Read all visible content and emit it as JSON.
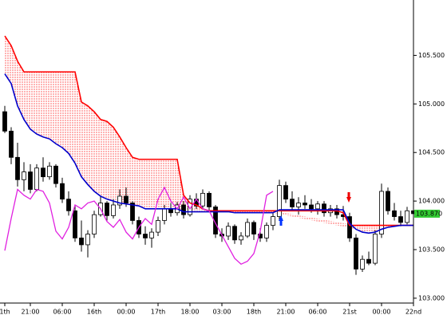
{
  "chart_data": {
    "type": "candlestick",
    "categories": [
      "1th",
      null,
      null,
      null,
      "21:00",
      null,
      null,
      null,
      null,
      "06:00",
      null,
      null,
      null,
      null,
      "16th",
      null,
      null,
      null,
      null,
      "00:00",
      null,
      null,
      null,
      null,
      "17th",
      null,
      null,
      null,
      null,
      "18:00",
      null,
      null,
      null,
      null,
      "03:00",
      null,
      null,
      null,
      null,
      "18th",
      null,
      null,
      null,
      null,
      "21:00",
      null,
      null,
      null,
      null,
      "06:00",
      null,
      null,
      null,
      null,
      "21st",
      null,
      null,
      null,
      null,
      "00:00",
      null,
      null,
      null,
      null,
      "22nd"
    ],
    "open": [
      104.92,
      104.72,
      104.45,
      104.22,
      104.3,
      104.12,
      104.34,
      104.25,
      104.36,
      104.18,
      104.02,
      103.9,
      103.62,
      103.55,
      103.66,
      103.86,
      103.98,
      103.85,
      103.96,
      104.05,
      103.98,
      103.8,
      103.66,
      103.62,
      103.68,
      103.8,
      103.92,
      103.88,
      103.96,
      103.86,
      104.02,
      103.95,
      104.08,
      103.94,
      103.66,
      103.64,
      103.74,
      103.6,
      103.64,
      103.78,
      103.66,
      103.62,
      103.75,
      103.84,
      104.16,
      104.02,
      103.94,
      103.98,
      103.96,
      103.92,
      103.97,
      103.88,
      103.92,
      103.86,
      103.84,
      103.62,
      103.3,
      103.4,
      103.36,
      103.66,
      104.1,
      103.9,
      103.84,
      103.78,
      103.9
    ],
    "high": [
      104.98,
      104.76,
      104.6,
      104.4,
      104.38,
      104.38,
      104.45,
      104.4,
      104.38,
      104.24,
      104.1,
      103.95,
      103.8,
      103.7,
      103.9,
      104.05,
      104.0,
      104.02,
      104.12,
      104.14,
      104.0,
      103.84,
      103.74,
      103.72,
      103.84,
      103.96,
      103.98,
      103.99,
      104.0,
      104.06,
      104.08,
      104.12,
      104.1,
      103.96,
      103.72,
      103.78,
      103.76,
      103.68,
      103.82,
      103.8,
      103.72,
      103.78,
      103.88,
      104.22,
      104.2,
      104.1,
      104.04,
      104.06,
      104.02,
      104.0,
      104.0,
      103.96,
      103.96,
      103.95,
      103.88,
      103.66,
      103.44,
      103.48,
      103.7,
      104.18,
      104.14,
      103.98,
      103.9,
      103.94,
      103.98
    ],
    "low": [
      104.7,
      104.38,
      104.15,
      104.1,
      104.08,
      104.1,
      104.2,
      104.22,
      104.14,
      103.98,
      103.85,
      103.58,
      103.48,
      103.42,
      103.62,
      103.84,
      103.8,
      103.82,
      103.92,
      103.94,
      103.76,
      103.62,
      103.55,
      103.52,
      103.64,
      103.76,
      103.84,
      103.85,
      103.82,
      103.84,
      103.92,
      103.92,
      103.9,
      103.62,
      103.58,
      103.6,
      103.56,
      103.55,
      103.62,
      103.6,
      103.58,
      103.58,
      103.7,
      103.8,
      103.98,
      103.9,
      103.86,
      103.92,
      103.88,
      103.86,
      103.84,
      103.84,
      103.82,
      103.8,
      103.58,
      103.24,
      103.27,
      103.34,
      103.34,
      103.62,
      103.86,
      103.8,
      103.74,
      103.76,
      103.84
    ],
    "close": [
      104.72,
      104.45,
      104.22,
      104.3,
      104.12,
      104.34,
      104.25,
      104.36,
      104.18,
      104.02,
      103.9,
      103.62,
      103.55,
      103.66,
      103.86,
      103.98,
      103.85,
      103.96,
      104.05,
      103.98,
      103.8,
      103.66,
      103.62,
      103.68,
      103.8,
      103.92,
      103.88,
      103.96,
      103.86,
      104.02,
      103.95,
      104.08,
      103.94,
      103.66,
      103.64,
      103.74,
      103.6,
      103.64,
      103.78,
      103.66,
      103.62,
      103.75,
      103.84,
      104.16,
      104.02,
      103.94,
      103.98,
      103.96,
      103.92,
      103.97,
      103.88,
      103.92,
      103.86,
      103.84,
      103.62,
      103.3,
      103.4,
      103.36,
      103.66,
      104.1,
      103.9,
      103.84,
      103.78,
      103.9,
      103.87
    ],
    "lines": [
      {
        "color": "#ff0000",
        "values": [
          105.7,
          105.6,
          105.44,
          105.33,
          105.33,
          105.33,
          105.33,
          105.33,
          105.33,
          105.33,
          105.33,
          105.33,
          105.02,
          104.98,
          104.92,
          104.84,
          104.82,
          104.76,
          104.66,
          104.55,
          104.45,
          104.43,
          104.43,
          104.43,
          104.43,
          104.43,
          104.43,
          104.43,
          104.06,
          103.98,
          103.96,
          103.92,
          103.9,
          103.9,
          103.9,
          103.9,
          103.9,
          103.9,
          103.9,
          103.9,
          103.9,
          103.9,
          103.9,
          103.9,
          103.9,
          103.9,
          103.9,
          103.9,
          103.9,
          103.9,
          103.9,
          103.9,
          103.9,
          103.88,
          103.75,
          103.75,
          103.75,
          103.75,
          103.75,
          103.75,
          103.75,
          103.75,
          103.75,
          103.75,
          103.75
        ]
      },
      {
        "color": "#0000cc",
        "values": [
          105.31,
          105.21,
          104.98,
          104.84,
          104.74,
          104.69,
          104.66,
          104.64,
          104.59,
          104.55,
          104.49,
          104.39,
          104.25,
          104.17,
          104.1,
          104.05,
          104.02,
          104.0,
          103.98,
          103.97,
          103.96,
          103.95,
          103.92,
          103.92,
          103.92,
          103.92,
          103.92,
          103.92,
          103.89,
          103.89,
          103.89,
          103.89,
          103.89,
          103.89,
          103.89,
          103.89,
          103.88,
          103.88,
          103.88,
          103.88,
          103.88,
          103.88,
          103.88,
          103.91,
          103.91,
          103.91,
          103.91,
          103.91,
          103.91,
          103.91,
          103.91,
          103.91,
          103.91,
          103.91,
          103.77,
          103.71,
          103.68,
          103.67,
          103.68,
          103.71,
          103.73,
          103.74,
          103.75,
          103.75,
          103.75
        ]
      },
      {
        "color": "#e020e0",
        "values": [
          103.49,
          103.82,
          104.12,
          104.06,
          104.02,
          104.12,
          104.1,
          103.98,
          103.69,
          103.61,
          103.73,
          103.96,
          103.92,
          103.98,
          104.0,
          103.92,
          103.79,
          103.73,
          103.81,
          103.68,
          103.61,
          103.73,
          103.82,
          103.76,
          104.02,
          104.14,
          104.0,
          103.92,
          104.04,
          103.92,
          104.02,
          103.92,
          103.9,
          103.77,
          103.65,
          103.53,
          103.41,
          103.35,
          103.38,
          103.46,
          103.69,
          104.06,
          104.1,
          null,
          null,
          null,
          null,
          null,
          null,
          null,
          null,
          null,
          null,
          null,
          null,
          null,
          null,
          null,
          null,
          null,
          null,
          null,
          null,
          null,
          null
        ]
      }
    ],
    "cloud_color": "#ff0000",
    "up_color": "#ffffff",
    "down_color": "#000000",
    "ylim": [
      102.95,
      106.07
    ],
    "yticks": [
      {
        "value": 103.0,
        "label": "103.000"
      },
      {
        "value": 103.5,
        "label": "103.500"
      },
      {
        "value": 104.0,
        "label": "104.000"
      },
      {
        "value": 104.5,
        "label": "104.500"
      },
      {
        "value": 105.0,
        "label": "105.000"
      },
      {
        "value": 105.5,
        "label": "105.500"
      }
    ],
    "current_price": {
      "value": 103.87,
      "label": "103.870"
    },
    "current_price_color": "#33cc33"
  }
}
